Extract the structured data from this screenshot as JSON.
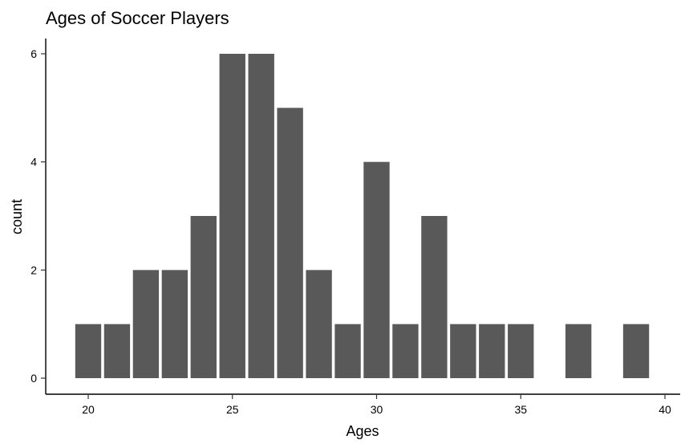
{
  "chart_data": {
    "type": "bar",
    "title": "Ages of Soccer Players",
    "xlabel": "Ages",
    "ylabel": "count",
    "x": [
      20,
      21,
      22,
      23,
      24,
      25,
      26,
      27,
      28,
      29,
      30,
      31,
      32,
      33,
      34,
      35,
      37,
      39
    ],
    "values": [
      1,
      1,
      2,
      2,
      3,
      6,
      6,
      5,
      2,
      1,
      4,
      1,
      3,
      1,
      1,
      1,
      1,
      1
    ],
    "xlim": [
      19.5,
      40.5
    ],
    "ylim": [
      0,
      6.4
    ],
    "xticks": [
      20,
      25,
      30,
      35,
      40
    ],
    "yticks": [
      0,
      2,
      4,
      6
    ],
    "grid": false,
    "colors": {
      "bar": "#595959",
      "axis": "#000000"
    }
  }
}
